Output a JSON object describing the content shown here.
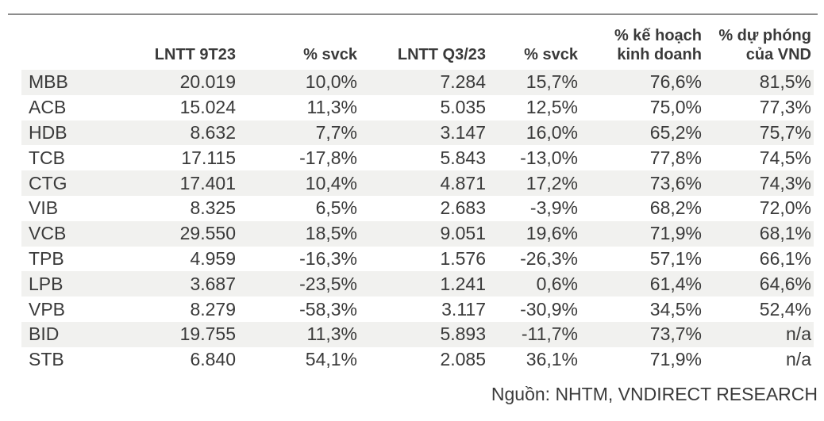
{
  "chart_data": {
    "type": "table",
    "columns": [
      "",
      "LNTT 9T23",
      "% svck",
      "LNTT Q3/23",
      "% svck",
      "% kế hoạch\nkinh doanh",
      "% dự phóng\ncủa VND"
    ],
    "row_keys": [
      "ticker",
      "lntt_9t23",
      "pct_svck_9t23",
      "lntt_q3_23",
      "pct_svck_q3_23",
      "pct_ke_hoach_kinh_doanh",
      "pct_du_phong_vnd"
    ],
    "rows": [
      {
        "ticker": "MBB",
        "lntt_9t23": "20.019",
        "pct_svck_9t23": "10,0%",
        "lntt_q3_23": "7.284",
        "pct_svck_q3_23": "15,7%",
        "pct_ke_hoach_kinh_doanh": "76,6%",
        "pct_du_phong_vnd": "81,5%"
      },
      {
        "ticker": "ACB",
        "lntt_9t23": "15.024",
        "pct_svck_9t23": "11,3%",
        "lntt_q3_23": "5.035",
        "pct_svck_q3_23": "12,5%",
        "pct_ke_hoach_kinh_doanh": "75,0%",
        "pct_du_phong_vnd": "77,3%"
      },
      {
        "ticker": "HDB",
        "lntt_9t23": "8.632",
        "pct_svck_9t23": "7,7%",
        "lntt_q3_23": "3.147",
        "pct_svck_q3_23": "16,0%",
        "pct_ke_hoach_kinh_doanh": "65,2%",
        "pct_du_phong_vnd": "75,7%"
      },
      {
        "ticker": "TCB",
        "lntt_9t23": "17.115",
        "pct_svck_9t23": "-17,8%",
        "lntt_q3_23": "5.843",
        "pct_svck_q3_23": "-13,0%",
        "pct_ke_hoach_kinh_doanh": "77,8%",
        "pct_du_phong_vnd": "74,5%"
      },
      {
        "ticker": "CTG",
        "lntt_9t23": "17.401",
        "pct_svck_9t23": "10,4%",
        "lntt_q3_23": "4.871",
        "pct_svck_q3_23": "17,2%",
        "pct_ke_hoach_kinh_doanh": "73,6%",
        "pct_du_phong_vnd": "74,3%"
      },
      {
        "ticker": "VIB",
        "lntt_9t23": "8.325",
        "pct_svck_9t23": "6,5%",
        "lntt_q3_23": "2.683",
        "pct_svck_q3_23": "-3,9%",
        "pct_ke_hoach_kinh_doanh": "68,2%",
        "pct_du_phong_vnd": "72,0%"
      },
      {
        "ticker": "VCB",
        "lntt_9t23": "29.550",
        "pct_svck_9t23": "18,5%",
        "lntt_q3_23": "9.051",
        "pct_svck_q3_23": "19,6%",
        "pct_ke_hoach_kinh_doanh": "71,9%",
        "pct_du_phong_vnd": "68,1%"
      },
      {
        "ticker": "TPB",
        "lntt_9t23": "4.959",
        "pct_svck_9t23": "-16,3%",
        "lntt_q3_23": "1.576",
        "pct_svck_q3_23": "-26,3%",
        "pct_ke_hoach_kinh_doanh": "57,1%",
        "pct_du_phong_vnd": "66,1%"
      },
      {
        "ticker": "LPB",
        "lntt_9t23": "3.687",
        "pct_svck_9t23": "-23,5%",
        "lntt_q3_23": "1.241",
        "pct_svck_q3_23": "0,6%",
        "pct_ke_hoach_kinh_doanh": "61,4%",
        "pct_du_phong_vnd": "64,6%"
      },
      {
        "ticker": "VPB",
        "lntt_9t23": "8.279",
        "pct_svck_9t23": "-58,3%",
        "lntt_q3_23": "3.117",
        "pct_svck_q3_23": "-30,9%",
        "pct_ke_hoach_kinh_doanh": "34,5%",
        "pct_du_phong_vnd": "52,4%"
      },
      {
        "ticker": "BID",
        "lntt_9t23": "19.755",
        "pct_svck_9t23": "11,3%",
        "lntt_q3_23": "5.893",
        "pct_svck_q3_23": "-11,7%",
        "pct_ke_hoach_kinh_doanh": "73,7%",
        "pct_du_phong_vnd": "n/a"
      },
      {
        "ticker": "STB",
        "lntt_9t23": "6.840",
        "pct_svck_9t23": "54,1%",
        "lntt_q3_23": "2.085",
        "pct_svck_q3_23": "36,1%",
        "pct_ke_hoach_kinh_doanh": "71,9%",
        "pct_du_phong_vnd": "n/a"
      }
    ],
    "source": "Nguồn: NHTM, VNDIRECT RESEARCH",
    "legend_position": "none",
    "grid": "off"
  },
  "colors": {
    "text": "#3a3a3a",
    "stripe": "#f1f1ef",
    "rule": "#8c8c8c",
    "background": "#ffffff"
  }
}
